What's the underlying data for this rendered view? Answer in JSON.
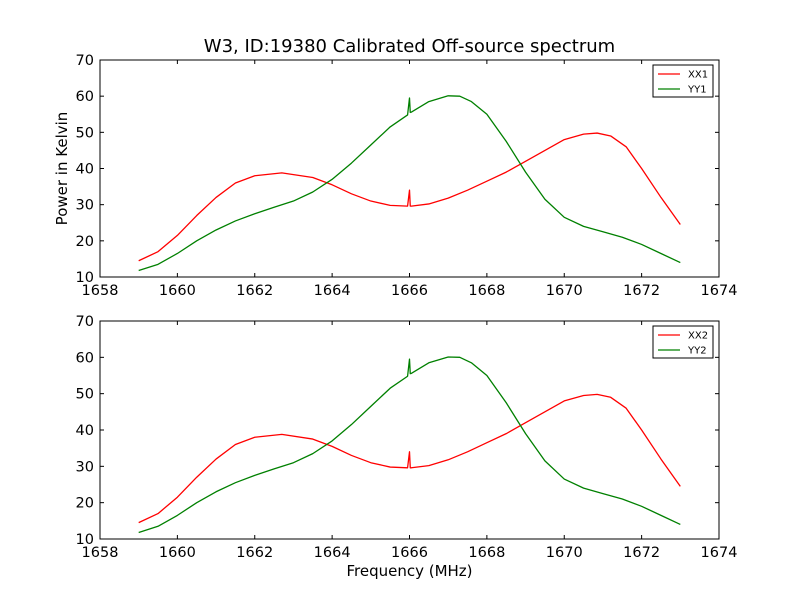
{
  "chart_data": [
    {
      "type": "line",
      "title": "W3, ID:19380 Calibrated Off-source spectrum",
      "xlabel": "",
      "ylabel": "Power in Kelvin",
      "xlim": [
        1658,
        1674
      ],
      "ylim": [
        10,
        70
      ],
      "xticks": [
        "1658",
        "1660",
        "1662",
        "1664",
        "1666",
        "1668",
        "1670",
        "1672",
        "1674"
      ],
      "yticks": [
        "10",
        "20",
        "30",
        "40",
        "50",
        "60",
        "70"
      ],
      "legend_placement": "top-right",
      "series": [
        {
          "name": "XX1",
          "color": "#ff0000",
          "x": [
            1659.0,
            1659.5,
            1660.0,
            1660.5,
            1661.0,
            1661.5,
            1662.0,
            1662.7,
            1663.5,
            1664.0,
            1664.5,
            1665.0,
            1665.5,
            1665.95,
            1666.0,
            1666.02,
            1666.05,
            1666.5,
            1667.0,
            1667.5,
            1668.0,
            1668.5,
            1669.0,
            1669.5,
            1670.0,
            1670.5,
            1670.85,
            1671.2,
            1671.6,
            1672.0,
            1672.5,
            1673.0
          ],
          "y": [
            14.5,
            17.0,
            21.5,
            27.0,
            32.0,
            36.0,
            38.0,
            38.8,
            37.5,
            35.5,
            33.0,
            31.0,
            29.8,
            29.6,
            34.0,
            29.6,
            29.6,
            30.2,
            31.8,
            34.0,
            36.5,
            39.0,
            42.0,
            45.0,
            48.0,
            49.5,
            49.8,
            49.0,
            46.0,
            40.0,
            32.0,
            24.5
          ]
        },
        {
          "name": "YY1",
          "color": "#008000",
          "x": [
            1659.0,
            1659.5,
            1660.0,
            1660.5,
            1661.0,
            1661.5,
            1662.0,
            1662.5,
            1663.0,
            1663.5,
            1664.0,
            1664.5,
            1665.0,
            1665.5,
            1665.95,
            1666.0,
            1666.02,
            1666.05,
            1666.5,
            1667.0,
            1667.3,
            1667.6,
            1668.0,
            1668.5,
            1669.0,
            1669.5,
            1670.0,
            1670.5,
            1671.0,
            1671.5,
            1672.0,
            1672.5,
            1673.0
          ],
          "y": [
            11.8,
            13.5,
            16.5,
            20.0,
            23.0,
            25.5,
            27.5,
            29.3,
            31.0,
            33.5,
            37.0,
            41.5,
            46.5,
            51.5,
            54.8,
            59.5,
            55.5,
            55.6,
            58.5,
            60.1,
            60.0,
            58.5,
            55.0,
            47.5,
            39.0,
            31.5,
            26.5,
            24.0,
            22.5,
            21.0,
            19.0,
            16.5,
            14.0
          ]
        }
      ]
    },
    {
      "type": "line",
      "title": "",
      "xlabel": "Frequency (MHz)",
      "ylabel": "",
      "xlim": [
        1658,
        1674
      ],
      "ylim": [
        10,
        70
      ],
      "xticks": [
        "1658",
        "1660",
        "1662",
        "1664",
        "1666",
        "1668",
        "1670",
        "1672",
        "1674"
      ],
      "yticks": [
        "10",
        "20",
        "30",
        "40",
        "50",
        "60",
        "70"
      ],
      "legend_placement": "top-right",
      "series": [
        {
          "name": "XX2",
          "color": "#ff0000",
          "x": [
            1659.0,
            1659.5,
            1660.0,
            1660.5,
            1661.0,
            1661.5,
            1662.0,
            1662.7,
            1663.5,
            1664.0,
            1664.5,
            1665.0,
            1665.5,
            1665.95,
            1666.0,
            1666.02,
            1666.05,
            1666.5,
            1667.0,
            1667.5,
            1668.0,
            1668.5,
            1669.0,
            1669.5,
            1670.0,
            1670.5,
            1670.85,
            1671.2,
            1671.6,
            1672.0,
            1672.5,
            1673.0
          ],
          "y": [
            14.5,
            17.0,
            21.5,
            27.0,
            32.0,
            36.0,
            38.0,
            38.8,
            37.5,
            35.5,
            33.0,
            31.0,
            29.8,
            29.6,
            34.0,
            29.6,
            29.6,
            30.2,
            31.8,
            34.0,
            36.5,
            39.0,
            42.0,
            45.0,
            48.0,
            49.5,
            49.8,
            49.0,
            46.0,
            40.0,
            32.0,
            24.5
          ]
        },
        {
          "name": "YY2",
          "color": "#008000",
          "x": [
            1659.0,
            1659.5,
            1660.0,
            1660.5,
            1661.0,
            1661.5,
            1662.0,
            1662.5,
            1663.0,
            1663.5,
            1664.0,
            1664.5,
            1665.0,
            1665.5,
            1665.95,
            1666.0,
            1666.02,
            1666.05,
            1666.5,
            1667.0,
            1667.3,
            1667.6,
            1668.0,
            1668.5,
            1669.0,
            1669.5,
            1670.0,
            1670.5,
            1671.0,
            1671.5,
            1672.0,
            1672.5,
            1673.0
          ],
          "y": [
            11.8,
            13.5,
            16.5,
            20.0,
            23.0,
            25.5,
            27.5,
            29.3,
            31.0,
            33.5,
            37.0,
            41.5,
            46.5,
            51.5,
            54.8,
            59.5,
            55.5,
            55.6,
            58.5,
            60.1,
            60.0,
            58.5,
            55.0,
            47.5,
            39.0,
            31.5,
            26.5,
            24.0,
            22.5,
            21.0,
            19.0,
            16.5,
            14.0
          ]
        }
      ]
    }
  ]
}
